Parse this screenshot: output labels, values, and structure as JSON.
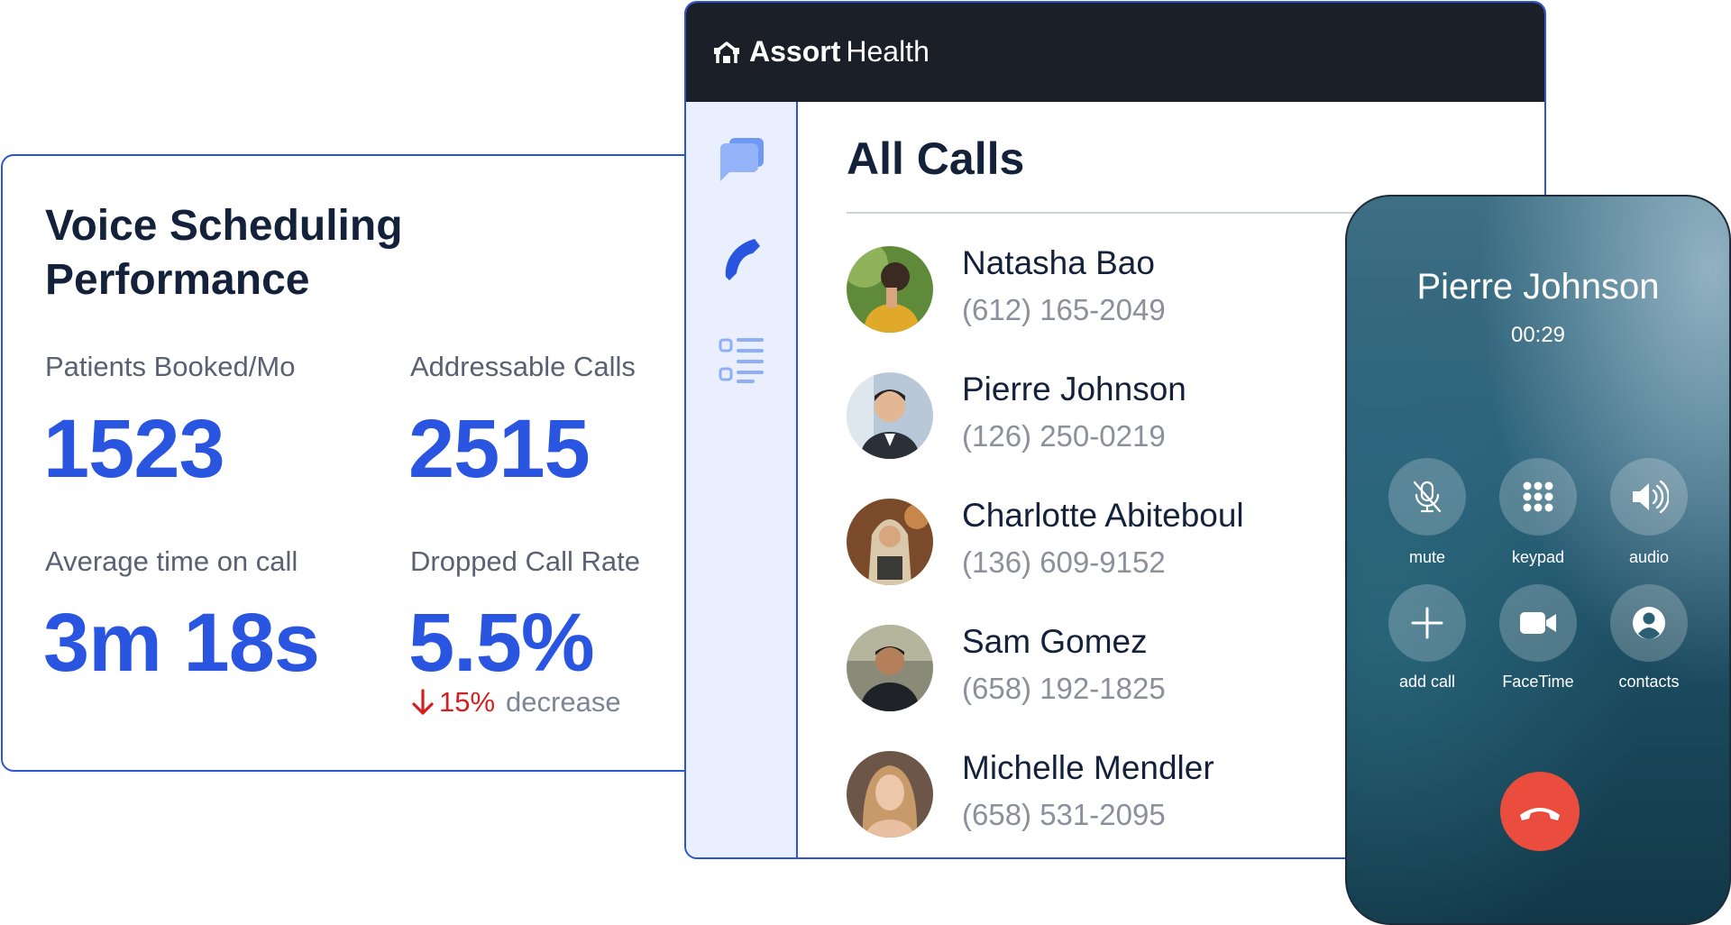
{
  "performance": {
    "title_line1": "Voice Scheduling",
    "title_line2": "Performance",
    "metrics": [
      {
        "label": "Patients Booked/Mo",
        "value": "1523"
      },
      {
        "label": "Addressable Calls",
        "value": "2515"
      },
      {
        "label": "Average time on call",
        "value": "3m 18s"
      },
      {
        "label": "Dropped Call Rate",
        "value": "5.5%"
      }
    ],
    "delta": {
      "percent": "15%",
      "text": "decrease",
      "color": "#d21f1f"
    }
  },
  "app": {
    "brand_bold": "Assort",
    "brand_light": "Health",
    "title": "All Calls",
    "sidebar_icons": [
      "messages-icon",
      "phone-icon",
      "list-icon"
    ],
    "accent": "#2c55d6"
  },
  "contacts": [
    {
      "name": "Natasha Bao",
      "phone": "(612) 165-2049"
    },
    {
      "name": "Pierre Johnson",
      "phone": "(126) 250-0219"
    },
    {
      "name": "Charlotte Abiteboul",
      "phone": "(136) 609-9152"
    },
    {
      "name": "Sam Gomez",
      "phone": "(658) 192-1825"
    },
    {
      "name": "Michelle Mendler",
      "phone": "(658) 531-2095"
    }
  ],
  "call": {
    "caller": "Pierre Johnson",
    "timer": "00:29",
    "buttons": [
      {
        "label": "mute",
        "icon": "mic-off-icon"
      },
      {
        "label": "keypad",
        "icon": "keypad-icon"
      },
      {
        "label": "audio",
        "icon": "speaker-icon"
      },
      {
        "label": "add call",
        "icon": "plus-icon"
      },
      {
        "label": "FaceTime",
        "icon": "video-icon"
      },
      {
        "label": "contacts",
        "icon": "contact-icon"
      }
    ],
    "end_color": "#ea4d3d"
  }
}
